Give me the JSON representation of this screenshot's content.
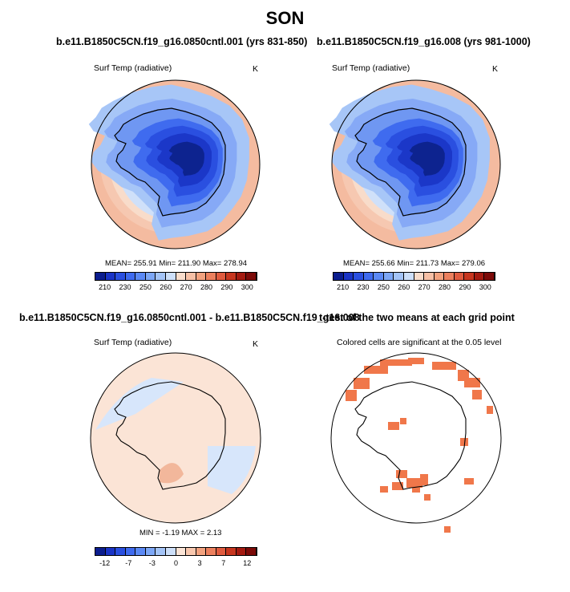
{
  "main_title": "SON",
  "panels": {
    "top_left": {
      "title": "b.e11.B1850C5CN.f19_g16.0850cntl.001 (yrs 831-850)",
      "variable": "Surf Temp (radiative)",
      "units": "K",
      "stats": "MEAN= 255.91  Min= 211.90  Max= 278.94"
    },
    "top_right": {
      "title": "b.e11.B1850C5CN.f19_g16.008 (yrs 981-1000)",
      "variable": "Surf Temp (radiative)",
      "units": "K",
      "stats": "MEAN= 255.66  Min= 211.73  Max= 279.06"
    },
    "bottom_left": {
      "title": "b.e11.B1850C5CN.f19_g16.0850cntl.001 - b.e11.B1850C5CN.f19_g16.008",
      "variable": "Surf Temp (radiative)",
      "units": "K",
      "stats": "MIN =  -1.19 MAX =   2.13"
    },
    "bottom_right": {
      "title": "t-test of the two means at each grid point",
      "subtitle": "Colored cells are significant at the 0.05 level"
    }
  },
  "colorbars": {
    "temperature": {
      "labels": [
        "210",
        "230",
        "250",
        "260",
        "270",
        "280",
        "290",
        "300"
      ],
      "colors": [
        "#0b1d8e",
        "#1a34c6",
        "#2a4fe0",
        "#3f6bef",
        "#5b89f5",
        "#7da7f6",
        "#a4c4f7",
        "#cddff9",
        "#f8dccb",
        "#f6c0a6",
        "#f2a27f",
        "#ec805e",
        "#e05b3f",
        "#c7361f",
        "#a41a10",
        "#7c0a08"
      ]
    },
    "difference": {
      "labels": [
        "-12",
        "-7",
        "-3",
        "0",
        "3",
        "7",
        "12"
      ],
      "colors": [
        "#0b1d8e",
        "#1a34c6",
        "#2a4fe0",
        "#3f6bef",
        "#5b89f5",
        "#7da7f6",
        "#a4c4f7",
        "#cddff9",
        "#fbe4d6",
        "#f8c7ae",
        "#f2a27f",
        "#ec805e",
        "#e05b3f",
        "#c7361f",
        "#a41a10",
        "#7c0a08"
      ]
    }
  },
  "map_colors": {
    "ocean_outer": "#f4bba0",
    "ocean_mid": "#f8dcca",
    "sea_ice_outer": "#cfe0f9",
    "sea_ice": "#a7c6f7",
    "coast": "#6f97f2",
    "land_1": "#3f6bef",
    "land_2": "#2a4fe0",
    "land_3": "#1b37c8",
    "plateau": "#0d238f",
    "diff_warm": "#fbe4d6",
    "diff_cool": "#d7e6fb",
    "diff_hot": "#f2b79b",
    "significant": "#f0774a"
  }
}
